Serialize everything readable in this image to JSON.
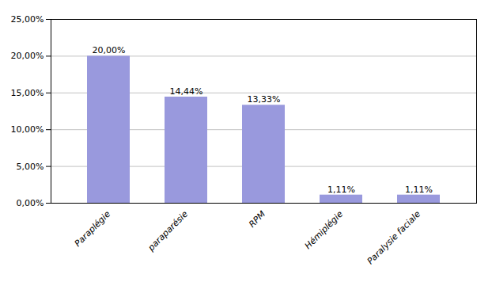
{
  "chart_data": {
    "type": "bar",
    "categories": [
      "Paraplégie",
      "paraparésie",
      "RPM",
      "Hémiplégie",
      "Paralysie faciale"
    ],
    "values": [
      20.0,
      14.44,
      13.33,
      1.11,
      1.11
    ],
    "value_labels": [
      "20,00%",
      "14,44%",
      "13,33%",
      "1,11%",
      "1,11%"
    ],
    "data_labels": true,
    "color": "#9999dd",
    "ylim": [
      0,
      25
    ],
    "yticks": [
      {
        "value": 0,
        "label": "0,00%"
      },
      {
        "value": 5,
        "label": "5,00%"
      },
      {
        "value": 10,
        "label": "10,00%"
      },
      {
        "value": 15,
        "label": "15,00%"
      },
      {
        "value": 20,
        "label": "20,00%"
      },
      {
        "value": 25,
        "label": "25,00%"
      }
    ],
    "grid": true
  }
}
